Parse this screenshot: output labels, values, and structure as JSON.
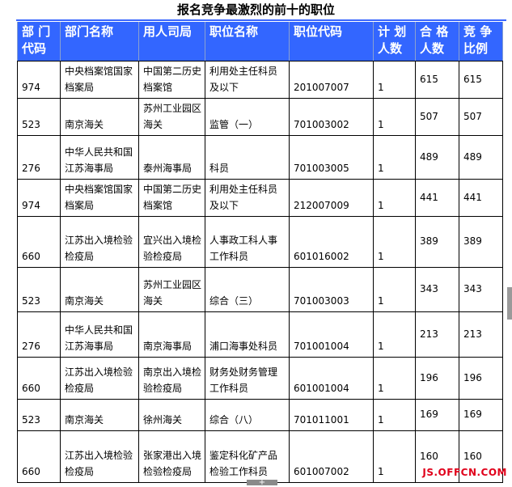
{
  "title": "报名竞争最激烈的前十的职位",
  "headers": [
    "部 门代码",
    "部门名称",
    "用人司局",
    "职位名称",
    "职位代码",
    "计 划人数",
    "合 格人数",
    "竞 争比例"
  ],
  "rows": [
    [
      "974",
      "中央档案馆国家档案局",
      "中国第二历史档案馆",
      "利用处主任科员及以下",
      "201007007",
      "1",
      "615",
      "615"
    ],
    [
      "523",
      "南京海关",
      "苏州工业园区海关",
      "监管（一）",
      "701003002",
      "1",
      "507",
      "507"
    ],
    [
      "276",
      "中华人民共和国江苏海事局",
      "泰州海事局",
      "科员",
      "701003005",
      "1",
      "489",
      "489"
    ],
    [
      "974",
      "中央档案馆国家档案局",
      "中国第二历史档案馆",
      "利用处主任科员及以下",
      "212007009",
      "1",
      "441",
      "441"
    ],
    [
      "660",
      "江苏出入境检验检疫局",
      "宜兴出入境检验检疫局",
      "人事政工科人事工作科员",
      "601016002",
      "1",
      "389",
      "389"
    ],
    [
      "523",
      "南京海关",
      "苏州工业园区海关",
      "综合（三）",
      "701003003",
      "1",
      "343",
      "343"
    ],
    [
      "276",
      "中华人民共和国江苏海事局",
      "南京海事局",
      "浦口海事处科员",
      "701001004",
      "1",
      "213",
      "213"
    ],
    [
      "660",
      "江苏出入境检验检疫局",
      "南京出入境检验检疫局",
      "财务处财务管理工作科员",
      "601001004",
      "1",
      "196",
      "196"
    ],
    [
      "523",
      "南京海关",
      "徐州海关",
      "综合（八）",
      "701011001",
      "1",
      "169",
      "169"
    ],
    [
      "660",
      "江苏出入境检验检疫局",
      "张家港出入境检验检疫局",
      "鉴定科化矿产品检验工作科员",
      "601007002",
      "1",
      "160",
      "160"
    ]
  ],
  "watermark": "JS.OFFCN.COM",
  "header_color": "#3366ff"
}
